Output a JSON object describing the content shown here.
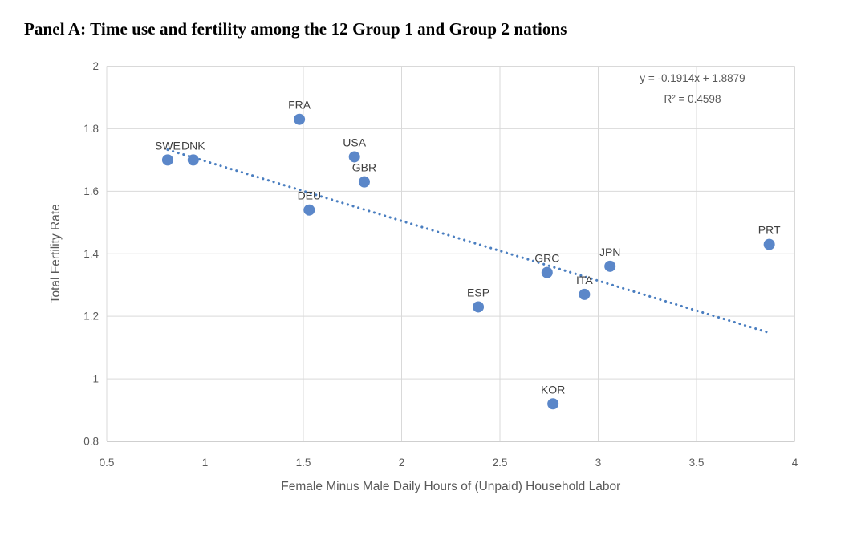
{
  "page": {
    "title": "Panel A: Time use and fertility among the 12 Group 1 and Group 2 nations"
  },
  "chart_data": {
    "type": "scatter",
    "title": "Panel A: Time use and fertility among the 12 Group 1 and Group 2 nations",
    "xlabel": "Female Minus Male Daily Hours of (Unpaid) Household Labor",
    "ylabel": "Total Fertility Rate",
    "xlim": [
      0.5,
      4
    ],
    "ylim": [
      0.8,
      2
    ],
    "xticks": [
      0.5,
      1,
      1.5,
      2,
      2.5,
      3,
      3.5,
      4
    ],
    "yticks": [
      2,
      1.8,
      1.6,
      1.4,
      1.2,
      1,
      0.8
    ],
    "grid": true,
    "legend": "none",
    "points": [
      {
        "label": "SWE",
        "x": 0.81,
        "y": 1.7
      },
      {
        "label": "DNK",
        "x": 0.94,
        "y": 1.7
      },
      {
        "label": "FRA",
        "x": 1.48,
        "y": 1.83
      },
      {
        "label": "USA",
        "x": 1.76,
        "y": 1.71
      },
      {
        "label": "GBR",
        "x": 1.81,
        "y": 1.63
      },
      {
        "label": "DEU",
        "x": 1.53,
        "y": 1.54
      },
      {
        "label": "ESP",
        "x": 2.39,
        "y": 1.23
      },
      {
        "label": "GRC",
        "x": 2.74,
        "y": 1.34
      },
      {
        "label": "ITA",
        "x": 2.93,
        "y": 1.27
      },
      {
        "label": "JPN",
        "x": 3.06,
        "y": 1.36
      },
      {
        "label": "KOR",
        "x": 2.77,
        "y": 0.92
      },
      {
        "label": "PRT",
        "x": 3.87,
        "y": 1.43
      }
    ],
    "trendline": {
      "style": "dotted",
      "slope": -0.1914,
      "intercept": 1.8879,
      "x_start": 0.81,
      "x_end": 3.87,
      "equation_label": "y = -0.1914x + 1.8879",
      "r2_label": "R² = 0.4598"
    },
    "colors": {
      "marker": "#5b87c9",
      "trendline": "#4a7ec0",
      "grid": "#d9d9d9",
      "axis_line": "#bfbfbf",
      "tick_text": "#595959",
      "axis_title_text": "#595959",
      "point_label_text": "#404040",
      "equation_text": "#595959",
      "title_text": "#000000",
      "background": "#ffffff"
    }
  }
}
